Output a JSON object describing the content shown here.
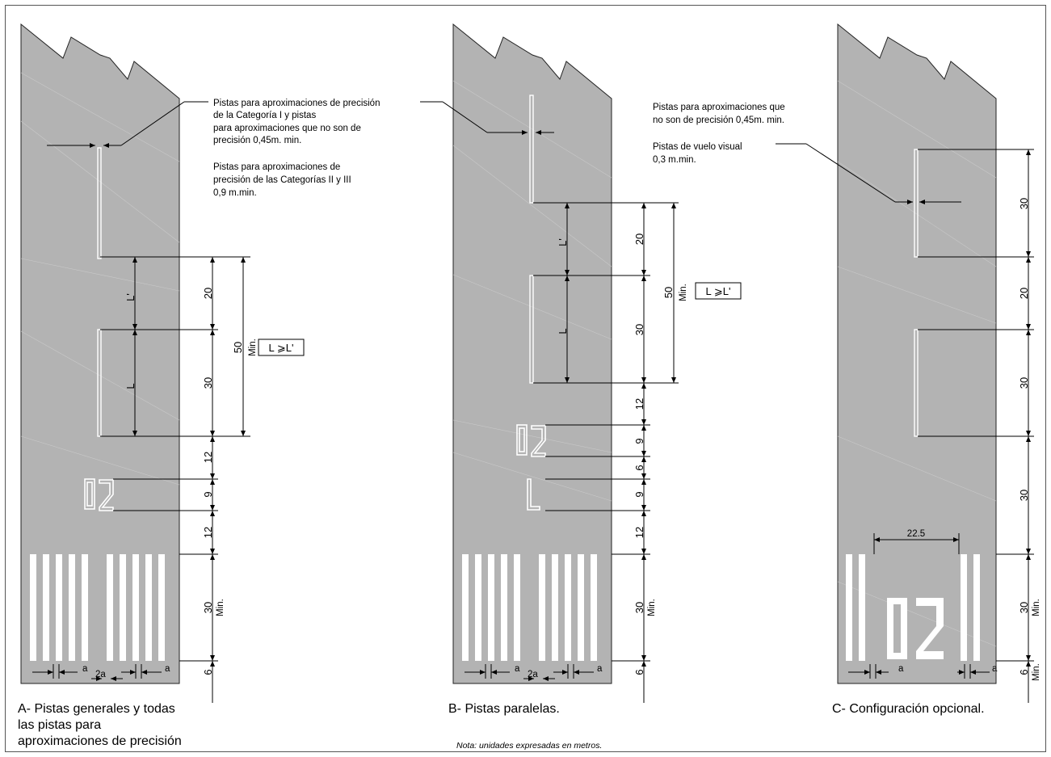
{
  "panels": {
    "A": {
      "caption_lines": [
        "A- Pistas generales y todas",
        "las pistas  para",
        "aproximaciones de precisión"
      ],
      "note1": [
        "Pistas para aproximaciones de precisión",
        "de la Categoría I y pistas",
        "para aproximaciones que no son de",
        "precisión 0,45m. min."
      ],
      "note2": [
        "Pistas para aproximaciones de",
        "precisión de las Categorías II y III",
        "0,9 m.min."
      ],
      "dims": [
        "20",
        "30",
        "12",
        "9",
        "12",
        "30",
        "6",
        "50"
      ],
      "min_label": "Min.",
      "ratio_box": "L ⩾L'",
      "L_label": "L",
      "Lp_label": "L'",
      "runway_number": "02",
      "a_label": "a",
      "two_a_label": "2a"
    },
    "B": {
      "caption": "B- Pistas paralelas.",
      "dims": [
        "20",
        "30",
        "12",
        "9",
        "6",
        "9",
        "12",
        "30",
        "6",
        "50"
      ],
      "min_label": "Min.",
      "ratio_box": "L ⩾L'",
      "L_label": "L",
      "Lp_label": "L'",
      "runway_number": "02",
      "letter": "L",
      "a_label": "a",
      "two_a_label": "2a"
    },
    "C": {
      "caption": "C- Configuración opcional.",
      "note1": [
        "Pistas para aproximaciones que",
        "no son de precisión 0,45m. min."
      ],
      "note2": [
        "Pistas de vuelo visual",
        "0,3 m.min."
      ],
      "dims": [
        "30",
        "20",
        "30",
        "30",
        "30",
        "6"
      ],
      "min_label": "Min.",
      "width_label": "22.5",
      "runway_number": "02",
      "a_label": "a"
    }
  },
  "footer_note": "Nota: unidades expresadas en metros."
}
